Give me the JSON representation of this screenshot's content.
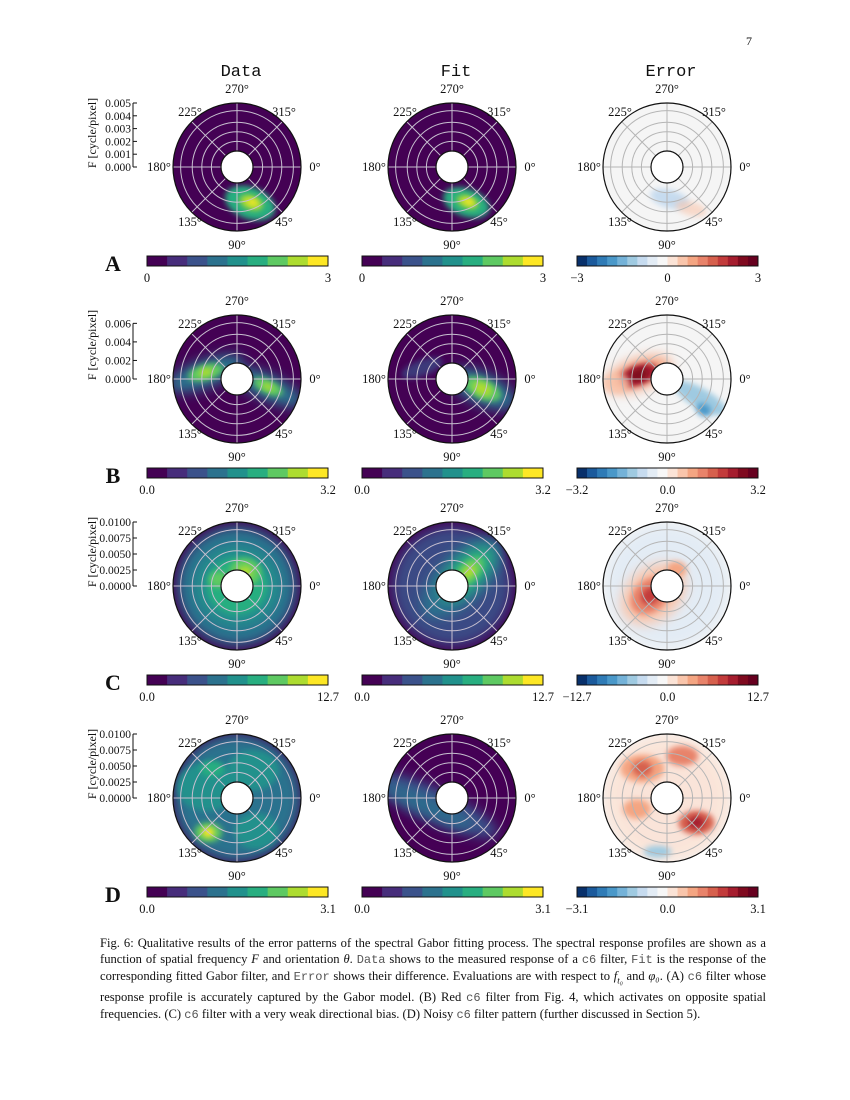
{
  "page_number": "7",
  "columns": [
    "Data",
    "Fit",
    "Error"
  ],
  "angle_labels": {
    "0": "0°",
    "45": "45°",
    "90": "90°",
    "135": "135°",
    "180": "180°",
    "225": "225°",
    "270": "270°",
    "315": "315°"
  },
  "y_axis_label": "F [cycle/pixel]",
  "colors": {
    "viridis": [
      "#440154",
      "#472d7b",
      "#3b528b",
      "#2c728e",
      "#21918c",
      "#28ae80",
      "#5ec962",
      "#addc30",
      "#fde725"
    ],
    "diverging": [
      "#08306b",
      "#1b5a9c",
      "#2f7bb6",
      "#4a98c9",
      "#74b2d8",
      "#9fcae1",
      "#c6dbef",
      "#e3ecf5",
      "#f7f7f7",
      "#fbe3d6",
      "#f9c5ab",
      "#f4a582",
      "#e8836a",
      "#d6604d",
      "#c23b3b",
      "#a51d2e",
      "#7f0a1f",
      "#67001f"
    ]
  },
  "rows": [
    {
      "label": "A",
      "rmax": 0.005,
      "yticks": [
        "0.000",
        "0.001",
        "0.002",
        "0.003",
        "0.004",
        "0.005"
      ],
      "yvals": [
        0,
        0.001,
        0.002,
        0.003,
        0.004,
        0.005
      ],
      "colorbars": [
        [
          "0",
          "",
          "3"
        ],
        [
          "0",
          "",
          "3"
        ],
        [
          "−3",
          "0",
          "3"
        ]
      ]
    },
    {
      "label": "B",
      "rmax": 0.0069,
      "yticks": [
        "0.000",
        "0.002",
        "0.004",
        "0.006"
      ],
      "yvals": [
        0,
        0.002,
        0.004,
        0.006
      ],
      "colorbars": [
        [
          "0.0",
          "",
          "3.2"
        ],
        [
          "0.0",
          "",
          "3.2"
        ],
        [
          "−3.2",
          "0.0",
          "3.2"
        ]
      ]
    },
    {
      "label": "C",
      "rmax": 0.01,
      "yticks": [
        "0.0000",
        "0.0025",
        "0.0050",
        "0.0075",
        "0.0100"
      ],
      "yvals": [
        0,
        0.0025,
        0.005,
        0.0075,
        0.01
      ],
      "colorbars": [
        [
          "0.0",
          "",
          "12.7"
        ],
        [
          "0.0",
          "",
          "12.7"
        ],
        [
          "−12.7",
          "0.0",
          "12.7"
        ]
      ]
    },
    {
      "label": "D",
      "rmax": 0.01,
      "yticks": [
        "0.0000",
        "0.0025",
        "0.0050",
        "0.0075",
        "0.0100"
      ],
      "yvals": [
        0,
        0.0025,
        0.005,
        0.0075,
        0.01
      ],
      "colorbars": [
        [
          "0.0",
          "",
          "3.1"
        ],
        [
          "0.0",
          "",
          "3.1"
        ],
        [
          "−3.1",
          "0.0",
          "3.1"
        ]
      ]
    }
  ],
  "caption": [
    {
      "t": "Fig. 6: Qualitative results of the error patterns of the spectral Gabor fitting process. The spectral response profiles are shown as a function of spatial frequency "
    },
    {
      "t": "F",
      "s": "it"
    },
    {
      "t": " and orientation "
    },
    {
      "t": "θ",
      "s": "it"
    },
    {
      "t": ". "
    },
    {
      "t": "Data",
      "s": "mono"
    },
    {
      "t": " shows to the measured response of a "
    },
    {
      "t": "c6",
      "s": "mono"
    },
    {
      "t": " filter, "
    },
    {
      "t": "Fit",
      "s": "mono"
    },
    {
      "t": " is the response of the corresponding fitted Gabor filter, and "
    },
    {
      "t": "Error",
      "s": "mono"
    },
    {
      "t": " shows their difference. Evaluations are with respect to "
    },
    {
      "t": "f",
      "s": "it"
    },
    {
      "t": "t₀",
      "s": "sub"
    },
    {
      "t": " and "
    },
    {
      "t": "φ₀",
      "s": "it"
    },
    {
      "t": ". (A) "
    },
    {
      "t": "c6",
      "s": "mono"
    },
    {
      "t": " filter whose response profile is accurately captured by the Gabor model. (B) Red "
    },
    {
      "t": "c6",
      "s": "mono"
    },
    {
      "t": " filter from Fig. 4, which activates on opposite spatial frequencies. (C) "
    },
    {
      "t": "c6",
      "s": "mono"
    },
    {
      "t": " filter with a very weak directional bias. (D) Noisy "
    },
    {
      "t": "c6",
      "s": "mono"
    },
    {
      "t": " filter pattern (further discussed in Section 5)."
    }
  ]
}
